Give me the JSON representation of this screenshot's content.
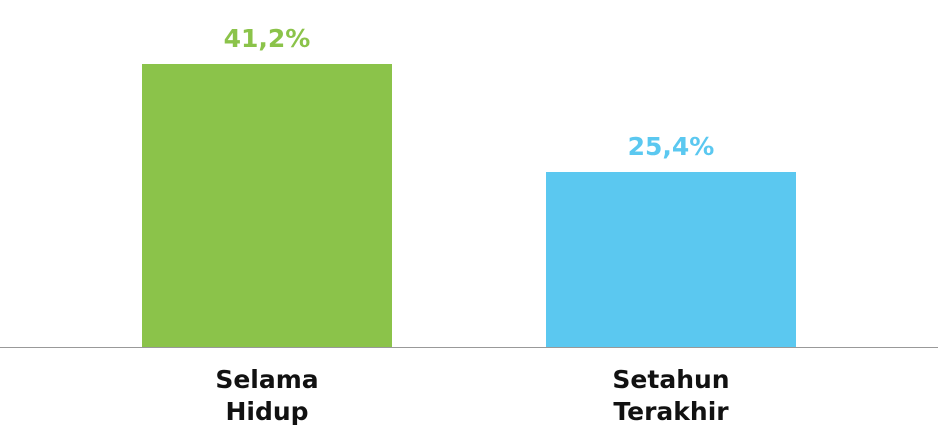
{
  "chart_data": {
    "type": "bar",
    "categories": [
      "Selama Hidup",
      "Setahun Terakhir"
    ],
    "values": [
      41.2,
      25.4
    ],
    "value_labels": [
      "41,2%",
      "25,4%"
    ],
    "colors": [
      "#8bc34a",
      "#5bc8f0"
    ],
    "ylim": [
      0,
      42
    ]
  }
}
